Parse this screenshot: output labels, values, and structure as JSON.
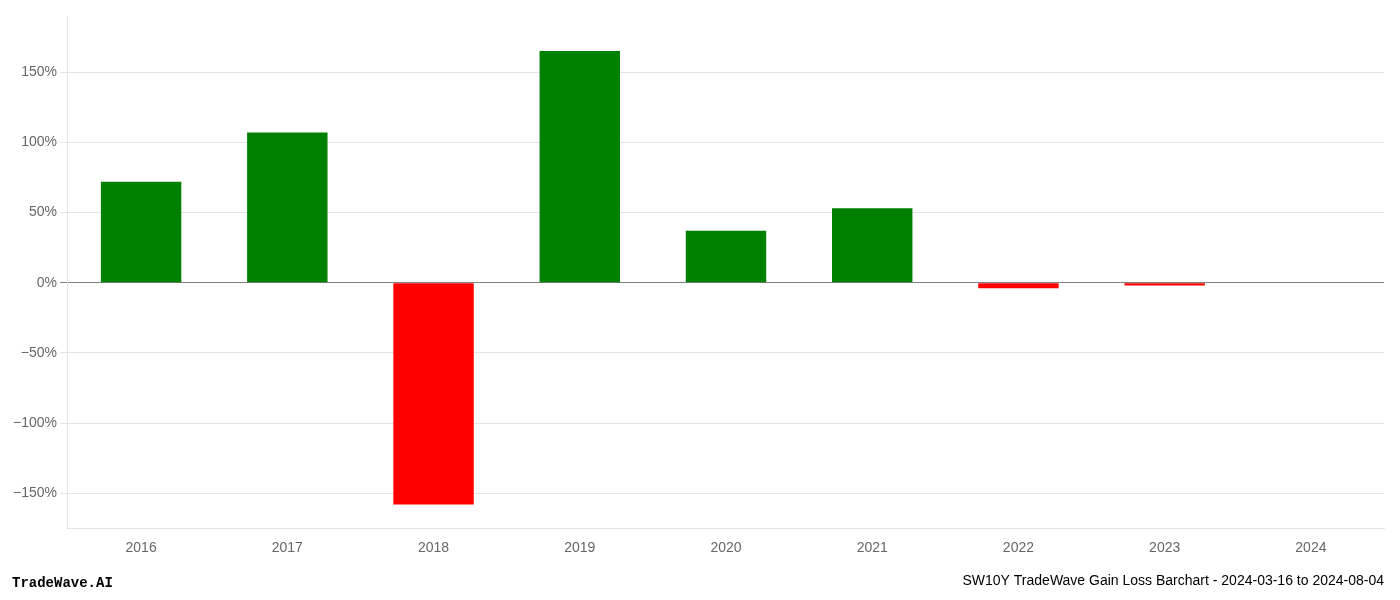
{
  "chart_data": {
    "type": "bar",
    "title": "SW10Y TradeWave Gain Loss Barchart - 2024-03-16 to 2024-08-04",
    "annotations": [
      "TradeWave.AI"
    ],
    "categories": [
      "2016",
      "2017",
      "2018",
      "2019",
      "2020",
      "2021",
      "2022",
      "2023",
      "2024"
    ],
    "values": [
      0.72,
      1.07,
      -1.58,
      1.65,
      0.37,
      0.53,
      -0.04,
      -0.02,
      0.0
    ],
    "colors": [
      "#008000",
      "#008000",
      "#ff0000",
      "#008000",
      "#008000",
      "#008000",
      "#ff0000",
      "#ff0000",
      "#ff0000"
    ],
    "ylim": [
      -1.75,
      1.9
    ],
    "yticks": [
      {
        "value": -1.5,
        "label": "−150%"
      },
      {
        "value": -1.0,
        "label": "−100%"
      },
      {
        "value": -0.5,
        "label": "−50%"
      },
      {
        "value": 0.0,
        "label": "0%"
      },
      {
        "value": 0.5,
        "label": "50%"
      },
      {
        "value": 1.0,
        "label": "100%"
      },
      {
        "value": 1.5,
        "label": "150%"
      }
    ],
    "grid": true
  }
}
